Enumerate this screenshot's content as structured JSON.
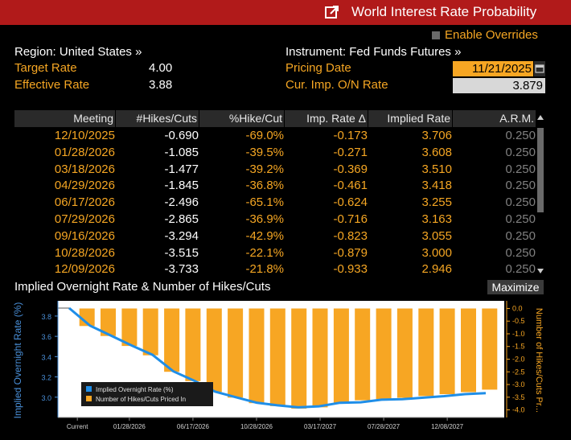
{
  "title": "World Interest Rate Probability",
  "header": {
    "region_label": "Region: United States »",
    "target_rate_label": "Target Rate",
    "target_rate": "4.00",
    "effective_rate_label": "Effective Rate",
    "effective_rate": "3.88",
    "instrument_label": "Instrument: Fed Funds Futures »",
    "enable_overrides": "Enable Overrides",
    "pricing_date_label": "Pricing Date",
    "pricing_date": "11/21/2025",
    "cur_imp_label": "Cur. Imp. O/N Rate",
    "cur_imp_rate": "3.879"
  },
  "table": {
    "columns": [
      "Meeting",
      "#Hikes/Cuts",
      "%Hike/Cut",
      "Imp. Rate Δ",
      "Implied Rate",
      "A.R.M."
    ],
    "rows": [
      [
        "12/10/2025",
        "-0.690",
        "-69.0%",
        "-0.173",
        "3.706",
        "0.250"
      ],
      [
        "01/28/2026",
        "-1.085",
        "-39.5%",
        "-0.271",
        "3.608",
        "0.250"
      ],
      [
        "03/18/2026",
        "-1.477",
        "-39.2%",
        "-0.369",
        "3.510",
        "0.250"
      ],
      [
        "04/29/2026",
        "-1.845",
        "-36.8%",
        "-0.461",
        "3.418",
        "0.250"
      ],
      [
        "06/17/2026",
        "-2.496",
        "-65.1%",
        "-0.624",
        "3.255",
        "0.250"
      ],
      [
        "07/29/2026",
        "-2.865",
        "-36.9%",
        "-0.716",
        "3.163",
        "0.250"
      ],
      [
        "09/16/2026",
        "-3.294",
        "-42.9%",
        "-0.823",
        "3.055",
        "0.250"
      ],
      [
        "10/28/2026",
        "-3.515",
        "-22.1%",
        "-0.879",
        "3.000",
        "0.250"
      ],
      [
        "12/09/2026",
        "-3.733",
        "-21.8%",
        "-0.933",
        "2.946",
        "0.250"
      ]
    ]
  },
  "chart_section": {
    "title": "Implied Overnight Rate & Number of Hikes/Cuts",
    "maximize_label": "Maximize"
  },
  "chart_data": {
    "type": "bar",
    "left_axis_label": "Implied Overnight Rate (%)",
    "right_axis_label": "Number of Hikes/Cuts Pr...",
    "left_ylim": [
      2.8,
      3.95
    ],
    "left_ticks": [
      "3.8",
      "3.6",
      "3.4",
      "3.2",
      "3.0"
    ],
    "right_ylim": [
      -4.3,
      0.3
    ],
    "right_ticks": [
      "0.0",
      "-0.5",
      "-1.0",
      "-1.5",
      "-2.0",
      "-2.5",
      "-3.0",
      "-3.5",
      "-4.0"
    ],
    "x_tick_labels": [
      "Current",
      "01/28/2026",
      "06/17/2026",
      "10/28/2026",
      "03/17/2027",
      "07/28/2027",
      "12/08/2027"
    ],
    "x_tick_positions": [
      0,
      2,
      5,
      8,
      11,
      14,
      17
    ],
    "legend": [
      "Implied Overnight Rate (%)",
      "Number of Hikes/Cuts Priced In"
    ],
    "legend_position": "bottom-left",
    "colors": {
      "line": "#1f8ee8",
      "bars": "#f7a623",
      "axis_text": "#4a90d9",
      "right_axis_text": "#f7a623"
    },
    "series": [
      {
        "name": "Number of Hikes/Cuts Priced In",
        "type": "bar",
        "values": [
          -0.69,
          -1.085,
          -1.477,
          -1.845,
          -2.496,
          -2.865,
          -3.294,
          -3.515,
          -3.733,
          -3.85,
          -3.95,
          -3.9,
          -3.75,
          -3.62,
          -3.58,
          -3.52,
          -3.45,
          -3.38,
          -3.3,
          -3.2
        ]
      },
      {
        "name": "Implied Overnight Rate (%)",
        "type": "line",
        "values": [
          3.879,
          3.706,
          3.608,
          3.51,
          3.418,
          3.255,
          3.163,
          3.055,
          3.0,
          2.946,
          2.92,
          2.9,
          2.91,
          2.945,
          2.95,
          2.975,
          2.98,
          2.995,
          3.01,
          3.03,
          3.04
        ]
      }
    ]
  }
}
